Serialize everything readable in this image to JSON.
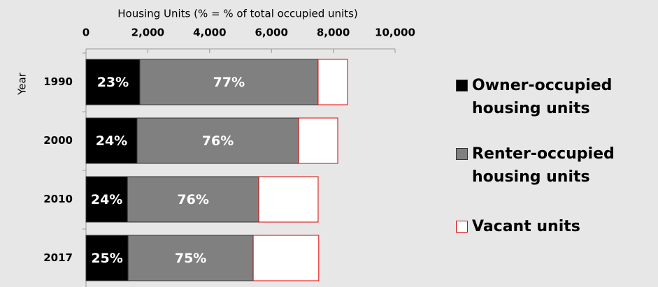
{
  "chart_data": {
    "type": "stacked-bar-horizontal",
    "x_label": "Housing Units (% = % of total occupied units)",
    "y_label": "Year",
    "categories": [
      "1990",
      "2000",
      "2010",
      "2017"
    ],
    "xlim": [
      0,
      10000
    ],
    "xticks": [
      0,
      {
        "value": 2000,
        "label": "2,000"
      },
      {
        "value": 4000,
        "label": "4,000"
      },
      {
        "value": 6000,
        "label": "6,000"
      },
      {
        "value": 8000,
        "label": "8,000"
      },
      {
        "value": 10000,
        "label": "10,000"
      }
    ],
    "series": [
      {
        "name": "Owner-occupied housing units",
        "color": "#000000",
        "values": [
          1740,
          1650,
          1340,
          1360
        ],
        "percent_labels": [
          "23%",
          "24%",
          "24%",
          "25%"
        ]
      },
      {
        "name": "Renter-occupied housing units",
        "color": "#808080",
        "values": [
          5770,
          5230,
          4250,
          4050
        ],
        "percent_labels": [
          "77%",
          "76%",
          "76%",
          "75%"
        ]
      },
      {
        "name": "Vacant units",
        "color": "#ffffff",
        "values": [
          950,
          1265,
          1920,
          2120
        ]
      }
    ]
  }
}
